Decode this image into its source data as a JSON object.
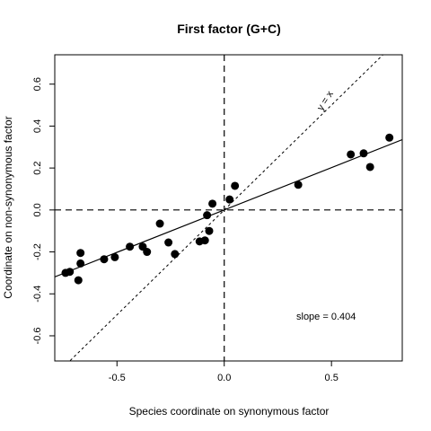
{
  "chart_data": {
    "type": "scatter",
    "title": "First factor (G+C)",
    "xlabel": "Species coordinate on synonymous factor",
    "ylabel": "Coordinate on non-synonymous factor",
    "xlim": [
      -0.79,
      0.83
    ],
    "ylim": [
      -0.72,
      0.74
    ],
    "xticks": [
      -0.5,
      0.0,
      0.5
    ],
    "yticks": [
      -0.6,
      -0.4,
      -0.2,
      0.0,
      0.2,
      0.4,
      0.6
    ],
    "xtick_labels": [
      "-0.5",
      "0.0",
      "0.5"
    ],
    "ytick_labels": [
      "-0.6",
      "-0.4",
      "-0.2",
      "0.0",
      "0.2",
      "0.4",
      "0.6"
    ],
    "grid": false,
    "points": [
      {
        "x": -0.74,
        "y": -0.3
      },
      {
        "x": -0.72,
        "y": -0.295
      },
      {
        "x": -0.68,
        "y": -0.335
      },
      {
        "x": -0.67,
        "y": -0.255
      },
      {
        "x": -0.67,
        "y": -0.205
      },
      {
        "x": -0.56,
        "y": -0.235
      },
      {
        "x": -0.51,
        "y": -0.225
      },
      {
        "x": -0.44,
        "y": -0.175
      },
      {
        "x": -0.38,
        "y": -0.175
      },
      {
        "x": -0.36,
        "y": -0.2
      },
      {
        "x": -0.3,
        "y": -0.065
      },
      {
        "x": -0.26,
        "y": -0.155
      },
      {
        "x": -0.23,
        "y": -0.21
      },
      {
        "x": -0.115,
        "y": -0.15
      },
      {
        "x": -0.09,
        "y": -0.145
      },
      {
        "x": -0.08,
        "y": -0.025
      },
      {
        "x": -0.07,
        "y": -0.1
      },
      {
        "x": -0.055,
        "y": 0.03
      },
      {
        "x": 0.025,
        "y": 0.05
      },
      {
        "x": 0.05,
        "y": 0.115
      },
      {
        "x": 0.345,
        "y": 0.12
      },
      {
        "x": 0.59,
        "y": 0.265
      },
      {
        "x": 0.65,
        "y": 0.27
      },
      {
        "x": 0.68,
        "y": 0.205
      },
      {
        "x": 0.77,
        "y": 0.345
      }
    ],
    "regression_line": {
      "slope": 0.404,
      "intercept": 0.0
    },
    "reference_lines": {
      "identity": true,
      "h_zero": true,
      "v_zero": true
    },
    "annotations": {
      "identity_label": "y = x",
      "slope_text": "slope =  0.404"
    }
  }
}
